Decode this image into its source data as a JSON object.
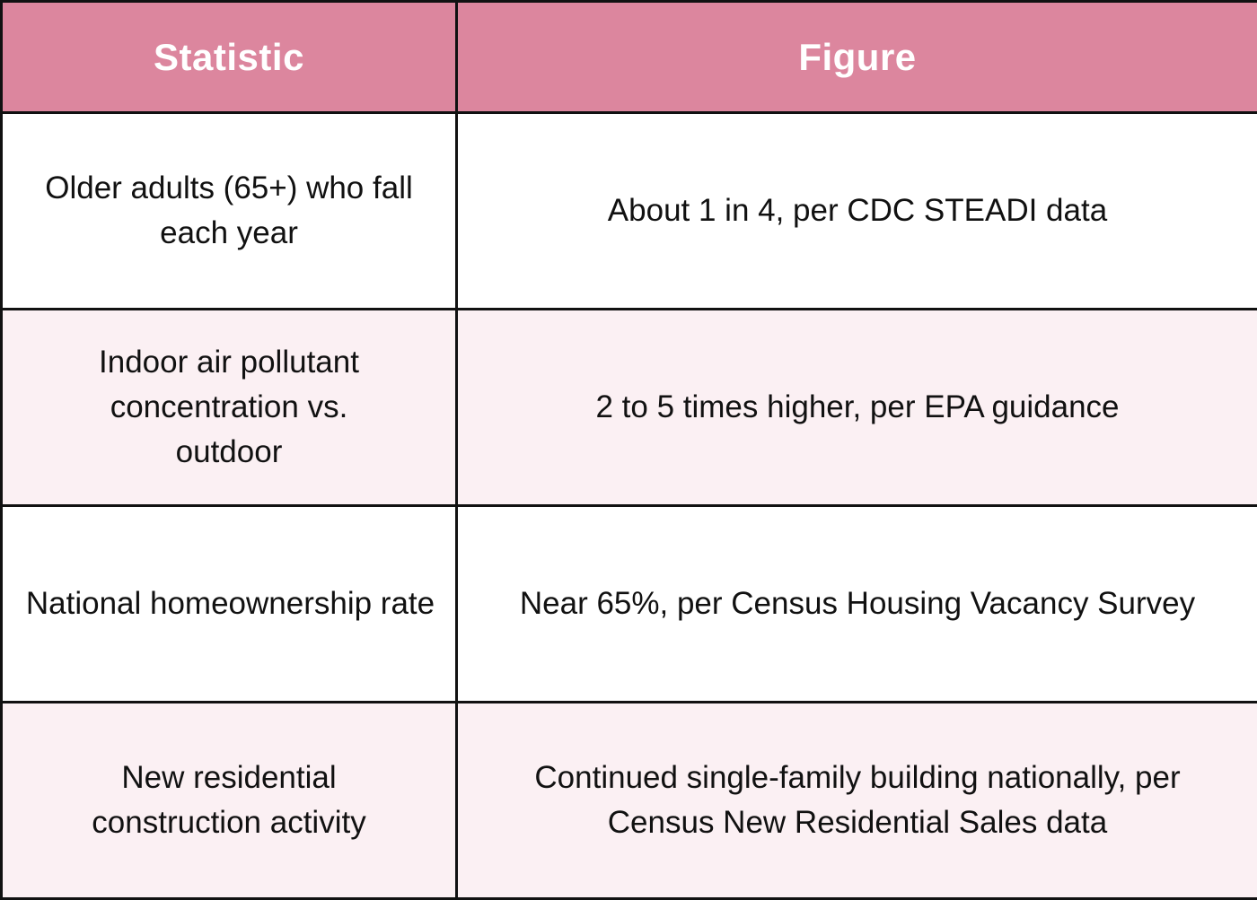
{
  "colors": {
    "header_bg": "#dc869e",
    "header_text": "#ffffff",
    "row_odd_bg": "#ffffff",
    "row_even_bg": "#fbf0f3",
    "border": "#111111",
    "text": "#111111"
  },
  "table": {
    "headers": {
      "statistic": "Statistic",
      "figure": "Figure"
    },
    "rows": [
      {
        "statistic": "Older adults (65+) who fall each year",
        "figure": "About 1 in 4, per CDC STEADI data"
      },
      {
        "statistic": "Indoor air pollutant concentration vs. outdoor",
        "figure": "2 to 5 times higher, per EPA guidance"
      },
      {
        "statistic": "National homeownership rate",
        "figure": "Near 65%, per Census Housing Vacancy Survey"
      },
      {
        "statistic": "New residential construction activity",
        "figure": "Continued single-family building nationally, per Census New Residential Sales data"
      }
    ]
  }
}
